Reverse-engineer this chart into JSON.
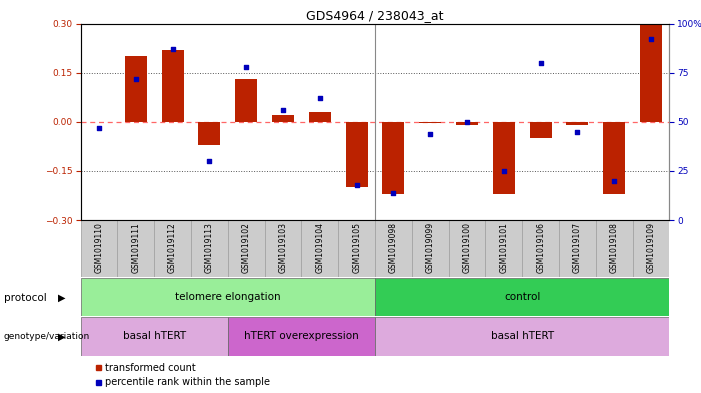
{
  "title": "GDS4964 / 238043_at",
  "samples": [
    "GSM1019110",
    "GSM1019111",
    "GSM1019112",
    "GSM1019113",
    "GSM1019102",
    "GSM1019103",
    "GSM1019104",
    "GSM1019105",
    "GSM1019098",
    "GSM1019099",
    "GSM1019100",
    "GSM1019101",
    "GSM1019106",
    "GSM1019107",
    "GSM1019108",
    "GSM1019109"
  ],
  "transformed_count": [
    0.0,
    0.2,
    0.22,
    -0.07,
    0.13,
    0.02,
    0.03,
    -0.2,
    -0.22,
    -0.005,
    -0.01,
    -0.22,
    -0.05,
    -0.01,
    -0.22,
    0.3
  ],
  "percentile_rank": [
    47,
    72,
    87,
    30,
    78,
    56,
    62,
    18,
    14,
    44,
    50,
    25,
    80,
    45,
    20,
    92
  ],
  "ylim": [
    -0.3,
    0.3
  ],
  "yticks_left": [
    -0.3,
    -0.15,
    0.0,
    0.15,
    0.3
  ],
  "yticks_right_pct": [
    0,
    25,
    50,
    75,
    100
  ],
  "hline_dotted": [
    -0.15,
    0.15
  ],
  "zero_line": 0.0,
  "protocol_groups": [
    {
      "label": "telomere elongation",
      "start": 0,
      "end": 8,
      "color": "#99EE99"
    },
    {
      "label": "control",
      "start": 8,
      "end": 16,
      "color": "#33CC55"
    }
  ],
  "genotype_groups": [
    {
      "label": "basal hTERT",
      "start": 0,
      "end": 4,
      "color": "#DDAADD"
    },
    {
      "label": "hTERT overexpression",
      "start": 4,
      "end": 8,
      "color": "#CC66CC"
    },
    {
      "label": "basal hTERT",
      "start": 8,
      "end": 16,
      "color": "#DDAADD"
    }
  ],
  "bar_color": "#BB2200",
  "dot_color": "#0000BB",
  "zero_line_color": "#FF6666",
  "dotted_line_color": "#555555",
  "bg_color": "#FFFFFF",
  "right_axis_color": "#0000BB",
  "left_axis_color": "#BB2200",
  "sample_box_color": "#CCCCCC",
  "title_fontsize": 9,
  "tick_fontsize": 6.5,
  "label_fontsize": 7.5,
  "sample_fontsize": 5.5
}
